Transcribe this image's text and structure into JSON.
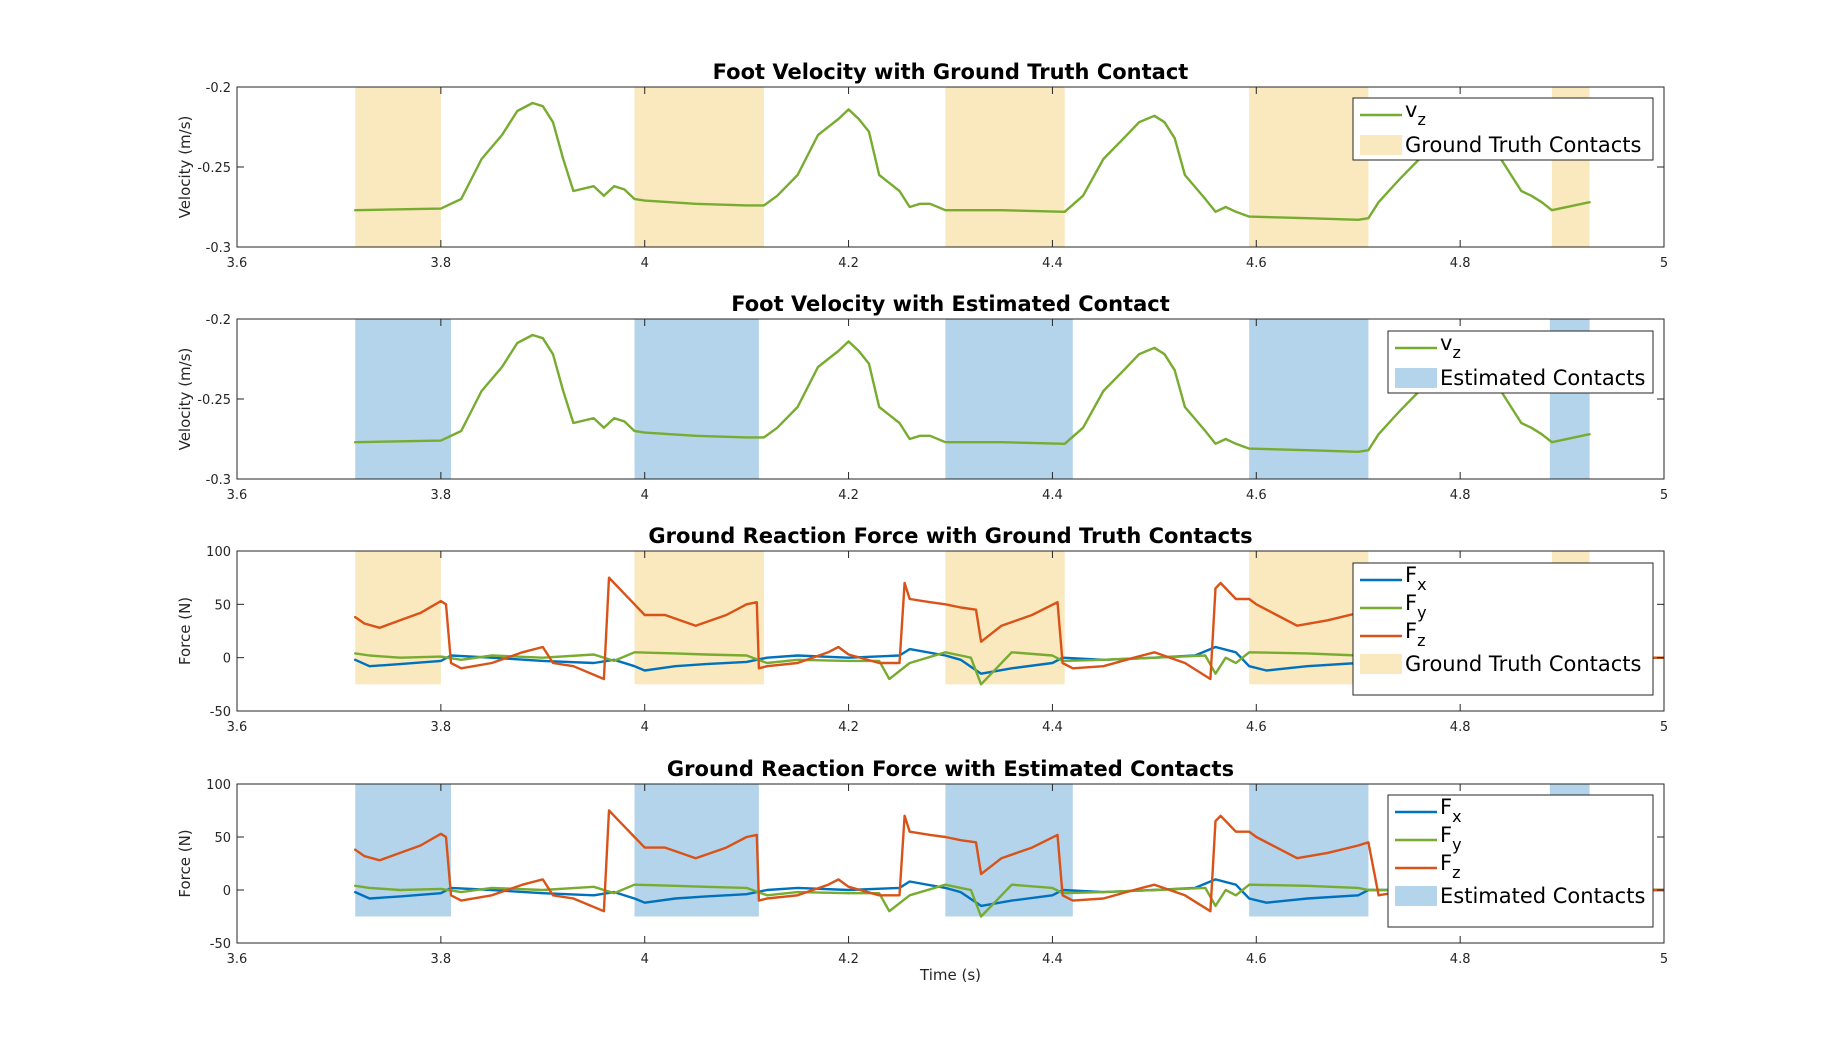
{
  "colors": {
    "truth_patch": "#fae8be",
    "est_patch": "#b3d4ea",
    "fx": "#0072bd",
    "fy": "#77ac30",
    "fz": "#d95319",
    "axis": "#262626"
  },
  "shared_x": {
    "xlabel": "Time (s)",
    "xlim": [
      3.6,
      5.0
    ],
    "xticks": [
      "3.6",
      "3.8",
      "4",
      "4.2",
      "4.4",
      "4.6",
      "4.8",
      "5"
    ]
  },
  "chart_data": [
    {
      "type": "line",
      "title": "Foot Velocity with Ground Truth Contact",
      "ylabel": "Velocity (m/s)",
      "xlim": [
        3.6,
        5.0
      ],
      "ylim": [
        -0.3,
        -0.2
      ],
      "yticks": [
        "-0.2",
        "-0.25",
        "-0.3"
      ],
      "grid": false,
      "legend_position": "top-right",
      "contact_label": "Ground Truth Contacts",
      "contact_color": "truth",
      "contacts": [
        [
          3.716,
          3.8
        ],
        [
          3.99,
          4.117
        ],
        [
          4.295,
          4.412
        ],
        [
          4.593,
          4.71
        ],
        [
          4.89,
          4.927
        ]
      ],
      "series": [
        {
          "name": "v",
          "sub": "z",
          "color": "fy",
          "x": [
            3.716,
            3.8,
            3.82,
            3.84,
            3.86,
            3.875,
            3.89,
            3.9,
            3.91,
            3.92,
            3.93,
            3.95,
            3.96,
            3.97,
            3.98,
            3.99,
            4.0,
            4.05,
            4.1,
            4.117,
            4.13,
            4.15,
            4.17,
            4.19,
            4.2,
            4.21,
            4.22,
            4.23,
            4.25,
            4.26,
            4.27,
            4.28,
            4.295,
            4.35,
            4.412,
            4.43,
            4.45,
            4.47,
            4.485,
            4.5,
            4.51,
            4.52,
            4.53,
            4.55,
            4.56,
            4.57,
            4.58,
            4.593,
            4.65,
            4.7,
            4.71,
            4.72,
            4.74,
            4.76,
            4.78,
            4.8,
            4.82,
            4.84,
            4.86,
            4.87,
            4.88,
            4.89,
            4.927
          ],
          "y": [
            -0.277,
            -0.276,
            -0.27,
            -0.245,
            -0.23,
            -0.215,
            -0.21,
            -0.212,
            -0.222,
            -0.245,
            -0.265,
            -0.262,
            -0.268,
            -0.262,
            -0.264,
            -0.27,
            -0.271,
            -0.273,
            -0.274,
            -0.274,
            -0.268,
            -0.255,
            -0.23,
            -0.22,
            -0.214,
            -0.22,
            -0.228,
            -0.255,
            -0.265,
            -0.275,
            -0.273,
            -0.273,
            -0.277,
            -0.277,
            -0.278,
            -0.268,
            -0.245,
            -0.232,
            -0.222,
            -0.218,
            -0.222,
            -0.232,
            -0.255,
            -0.27,
            -0.278,
            -0.275,
            -0.278,
            -0.281,
            -0.282,
            -0.283,
            -0.282,
            -0.272,
            -0.258,
            -0.245,
            -0.235,
            -0.228,
            -0.232,
            -0.245,
            -0.265,
            -0.268,
            -0.272,
            -0.277,
            -0.272
          ]
        }
      ]
    },
    {
      "type": "line",
      "title": "Foot Velocity with Estimated Contact",
      "ylabel": "Velocity (m/s)",
      "xlim": [
        3.6,
        5.0
      ],
      "ylim": [
        -0.3,
        -0.2
      ],
      "yticks": [
        "-0.2",
        "-0.25",
        "-0.3"
      ],
      "grid": false,
      "legend_position": "top-right",
      "contact_label": "Estimated Contacts",
      "contact_color": "est",
      "contacts": [
        [
          3.716,
          3.81
        ],
        [
          3.99,
          4.112
        ],
        [
          4.295,
          4.42
        ],
        [
          4.593,
          4.71
        ],
        [
          4.888,
          4.927
        ]
      ],
      "series": [
        {
          "name": "v",
          "sub": "z",
          "color": "fy",
          "x": [
            3.716,
            3.8,
            3.82,
            3.84,
            3.86,
            3.875,
            3.89,
            3.9,
            3.91,
            3.92,
            3.93,
            3.95,
            3.96,
            3.97,
            3.98,
            3.99,
            4.0,
            4.05,
            4.1,
            4.117,
            4.13,
            4.15,
            4.17,
            4.19,
            4.2,
            4.21,
            4.22,
            4.23,
            4.25,
            4.26,
            4.27,
            4.28,
            4.295,
            4.35,
            4.412,
            4.43,
            4.45,
            4.47,
            4.485,
            4.5,
            4.51,
            4.52,
            4.53,
            4.55,
            4.56,
            4.57,
            4.58,
            4.593,
            4.65,
            4.7,
            4.71,
            4.72,
            4.74,
            4.76,
            4.78,
            4.8,
            4.82,
            4.84,
            4.86,
            4.87,
            4.88,
            4.89,
            4.927
          ],
          "y": [
            -0.277,
            -0.276,
            -0.27,
            -0.245,
            -0.23,
            -0.215,
            -0.21,
            -0.212,
            -0.222,
            -0.245,
            -0.265,
            -0.262,
            -0.268,
            -0.262,
            -0.264,
            -0.27,
            -0.271,
            -0.273,
            -0.274,
            -0.274,
            -0.268,
            -0.255,
            -0.23,
            -0.22,
            -0.214,
            -0.22,
            -0.228,
            -0.255,
            -0.265,
            -0.275,
            -0.273,
            -0.273,
            -0.277,
            -0.277,
            -0.278,
            -0.268,
            -0.245,
            -0.232,
            -0.222,
            -0.218,
            -0.222,
            -0.232,
            -0.255,
            -0.27,
            -0.278,
            -0.275,
            -0.278,
            -0.281,
            -0.282,
            -0.283,
            -0.282,
            -0.272,
            -0.258,
            -0.245,
            -0.235,
            -0.228,
            -0.232,
            -0.245,
            -0.265,
            -0.268,
            -0.272,
            -0.277,
            -0.272
          ]
        }
      ]
    },
    {
      "type": "line",
      "title": "Ground Reaction Force with Ground Truth Contacts",
      "ylabel": "Force (N)",
      "xlim": [
        3.6,
        5.0
      ],
      "ylim": [
        -50,
        100
      ],
      "yticks": [
        "100",
        "50",
        "0",
        "-50"
      ],
      "grid": false,
      "legend_position": "top-right",
      "contact_label": "Ground Truth Contacts",
      "contact_color": "truth",
      "contact_ylim": [
        -25,
        100
      ],
      "contacts": [
        [
          3.716,
          3.8
        ],
        [
          3.99,
          4.117
        ],
        [
          4.295,
          4.412
        ],
        [
          4.593,
          4.71
        ],
        [
          4.89,
          4.927
        ]
      ],
      "series": [
        {
          "name": "F",
          "sub": "x",
          "color": "fx",
          "x": [
            3.716,
            3.73,
            3.76,
            3.8,
            3.81,
            3.85,
            3.9,
            3.95,
            3.97,
            3.99,
            4.0,
            4.03,
            4.06,
            4.1,
            4.12,
            4.15,
            4.2,
            4.25,
            4.26,
            4.295,
            4.31,
            4.33,
            4.36,
            4.4,
            4.41,
            4.45,
            4.5,
            4.54,
            4.56,
            4.58,
            4.593,
            4.61,
            4.65,
            4.7,
            4.71,
            4.75,
            4.8,
            4.85,
            4.9,
            4.95,
            5.0
          ],
          "y": [
            -2,
            -8,
            -6,
            -3,
            2,
            0,
            -3,
            -5,
            -2,
            -8,
            -12,
            -8,
            -6,
            -4,
            0,
            2,
            0,
            2,
            8,
            2,
            -2,
            -15,
            -10,
            -5,
            0,
            -2,
            0,
            2,
            10,
            5,
            -8,
            -12,
            -8,
            -5,
            0,
            0,
            0,
            0,
            0,
            0,
            0
          ]
        },
        {
          "name": "F",
          "sub": "y",
          "color": "fy",
          "x": [
            3.716,
            3.73,
            3.76,
            3.8,
            3.82,
            3.85,
            3.9,
            3.95,
            3.97,
            3.99,
            4.03,
            4.06,
            4.1,
            4.12,
            4.15,
            4.2,
            4.23,
            4.24,
            4.26,
            4.295,
            4.31,
            4.32,
            4.33,
            4.36,
            4.4,
            4.41,
            4.45,
            4.5,
            4.55,
            4.56,
            4.57,
            4.58,
            4.593,
            4.65,
            4.7,
            4.71,
            4.75,
            4.8,
            4.85,
            4.9,
            4.95,
            5.0
          ],
          "y": [
            4,
            2,
            0,
            1,
            -2,
            2,
            0,
            3,
            -3,
            5,
            4,
            3,
            2,
            -5,
            -2,
            -3,
            -3,
            -20,
            -5,
            5,
            2,
            0,
            -25,
            5,
            2,
            -3,
            -2,
            0,
            2,
            -15,
            0,
            -5,
            5,
            4,
            2,
            0,
            0,
            0,
            0,
            0,
            0,
            0
          ]
        },
        {
          "name": "F",
          "sub": "z",
          "color": "fz",
          "x": [
            3.716,
            3.725,
            3.74,
            3.76,
            3.78,
            3.8,
            3.805,
            3.81,
            3.82,
            3.85,
            3.88,
            3.9,
            3.91,
            3.93,
            3.96,
            3.965,
            3.97,
            3.98,
            3.99,
            4.0,
            4.02,
            4.05,
            4.08,
            4.1,
            4.11,
            4.112,
            4.12,
            4.15,
            4.18,
            4.19,
            4.2,
            4.23,
            4.25,
            4.255,
            4.26,
            4.28,
            4.295,
            4.31,
            4.325,
            4.33,
            4.35,
            4.38,
            4.405,
            4.41,
            4.42,
            4.45,
            4.48,
            4.5,
            4.53,
            4.555,
            4.56,
            4.565,
            4.58,
            4.593,
            4.6,
            4.62,
            4.64,
            4.67,
            4.7,
            4.71,
            4.72,
            4.75,
            4.8,
            4.85,
            4.9,
            4.95,
            5.0
          ],
          "y": [
            38,
            32,
            28,
            35,
            42,
            53,
            50,
            -5,
            -10,
            -5,
            5,
            10,
            -5,
            -8,
            -20,
            75,
            70,
            60,
            50,
            40,
            40,
            30,
            40,
            50,
            52,
            -10,
            -8,
            -5,
            5,
            10,
            3,
            -5,
            -5,
            70,
            55,
            52,
            50,
            47,
            45,
            15,
            30,
            40,
            52,
            -5,
            -10,
            -8,
            0,
            5,
            -5,
            -20,
            65,
            70,
            55,
            55,
            50,
            40,
            30,
            35,
            42,
            45,
            -5,
            0,
            0,
            0,
            0,
            0,
            0
          ]
        }
      ]
    },
    {
      "type": "line",
      "title": "Ground Reaction Force with Estimated Contacts",
      "ylabel": "Force (N)",
      "xlim": [
        3.6,
        5.0
      ],
      "ylim": [
        -50,
        100
      ],
      "yticks": [
        "100",
        "50",
        "0",
        "-50"
      ],
      "grid": false,
      "legend_position": "top-right",
      "contact_label": "Estimated Contacts",
      "contact_color": "est",
      "contact_ylim": [
        -25,
        100
      ],
      "contacts": [
        [
          3.716,
          3.81
        ],
        [
          3.99,
          4.112
        ],
        [
          4.295,
          4.42
        ],
        [
          4.593,
          4.71
        ],
        [
          4.888,
          4.927
        ]
      ],
      "series": [
        {
          "name": "F",
          "sub": "x",
          "color": "fx",
          "x": [
            3.716,
            3.73,
            3.76,
            3.8,
            3.81,
            3.85,
            3.9,
            3.95,
            3.97,
            3.99,
            4.0,
            4.03,
            4.06,
            4.1,
            4.12,
            4.15,
            4.2,
            4.25,
            4.26,
            4.295,
            4.31,
            4.33,
            4.36,
            4.4,
            4.41,
            4.45,
            4.5,
            4.54,
            4.56,
            4.58,
            4.593,
            4.61,
            4.65,
            4.7,
            4.71,
            4.75,
            4.8,
            4.85,
            4.9,
            4.95,
            5.0
          ],
          "y": [
            -2,
            -8,
            -6,
            -3,
            2,
            0,
            -3,
            -5,
            -2,
            -8,
            -12,
            -8,
            -6,
            -4,
            0,
            2,
            0,
            2,
            8,
            2,
            -2,
            -15,
            -10,
            -5,
            0,
            -2,
            0,
            2,
            10,
            5,
            -8,
            -12,
            -8,
            -5,
            0,
            0,
            0,
            0,
            0,
            0,
            0
          ]
        },
        {
          "name": "F",
          "sub": "y",
          "color": "fy",
          "x": [
            3.716,
            3.73,
            3.76,
            3.8,
            3.82,
            3.85,
            3.9,
            3.95,
            3.97,
            3.99,
            4.03,
            4.06,
            4.1,
            4.12,
            4.15,
            4.2,
            4.23,
            4.24,
            4.26,
            4.295,
            4.31,
            4.32,
            4.33,
            4.36,
            4.4,
            4.41,
            4.45,
            4.5,
            4.55,
            4.56,
            4.57,
            4.58,
            4.593,
            4.65,
            4.7,
            4.71,
            4.75,
            4.8,
            4.85,
            4.9,
            4.95,
            5.0
          ],
          "y": [
            4,
            2,
            0,
            1,
            -2,
            2,
            0,
            3,
            -3,
            5,
            4,
            3,
            2,
            -5,
            -2,
            -3,
            -3,
            -20,
            -5,
            5,
            2,
            0,
            -25,
            5,
            2,
            -3,
            -2,
            0,
            2,
            -15,
            0,
            -5,
            5,
            4,
            2,
            0,
            0,
            0,
            0,
            0,
            0,
            0
          ]
        },
        {
          "name": "F",
          "sub": "z",
          "color": "fz",
          "x": [
            3.716,
            3.725,
            3.74,
            3.76,
            3.78,
            3.8,
            3.805,
            3.81,
            3.82,
            3.85,
            3.88,
            3.9,
            3.91,
            3.93,
            3.96,
            3.965,
            3.97,
            3.98,
            3.99,
            4.0,
            4.02,
            4.05,
            4.08,
            4.1,
            4.11,
            4.112,
            4.12,
            4.15,
            4.18,
            4.19,
            4.2,
            4.23,
            4.25,
            4.255,
            4.26,
            4.28,
            4.295,
            4.31,
            4.325,
            4.33,
            4.35,
            4.38,
            4.405,
            4.41,
            4.42,
            4.45,
            4.48,
            4.5,
            4.53,
            4.555,
            4.56,
            4.565,
            4.58,
            4.593,
            4.6,
            4.62,
            4.64,
            4.67,
            4.7,
            4.71,
            4.72,
            4.75,
            4.8,
            4.85,
            4.9,
            4.95,
            5.0
          ],
          "y": [
            38,
            32,
            28,
            35,
            42,
            53,
            50,
            -5,
            -10,
            -5,
            5,
            10,
            -5,
            -8,
            -20,
            75,
            70,
            60,
            50,
            40,
            40,
            30,
            40,
            50,
            52,
            -10,
            -8,
            -5,
            5,
            10,
            3,
            -5,
            -5,
            70,
            55,
            52,
            50,
            47,
            45,
            15,
            30,
            40,
            52,
            -5,
            -10,
            -8,
            0,
            5,
            -5,
            -20,
            65,
            70,
            55,
            55,
            50,
            40,
            30,
            35,
            42,
            45,
            -5,
            0,
            0,
            0,
            0,
            0,
            0
          ]
        }
      ]
    }
  ]
}
